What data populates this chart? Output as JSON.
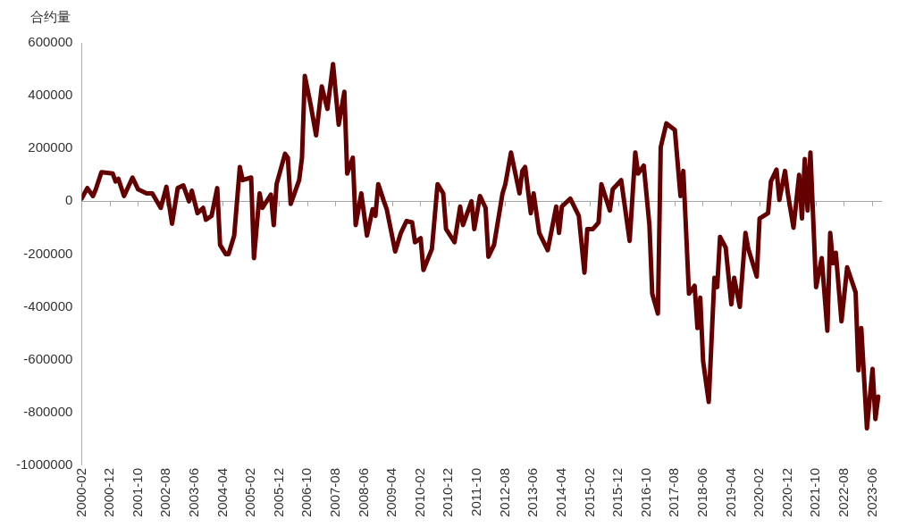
{
  "chart_data": {
    "type": "line",
    "ylabel": "合约量",
    "x": [
      "2000-02",
      "2000-04",
      "2000-06",
      "2000-07",
      "2000-09",
      "2001-01",
      "2001-02",
      "2001-03",
      "2001-05",
      "2001-08",
      "2001-10",
      "2002-01",
      "2002-03",
      "2002-06",
      "2002-08",
      "2002-10",
      "2002-12",
      "2003-02",
      "2003-04",
      "2003-05",
      "2003-07",
      "2003-09",
      "2003-10",
      "2003-12",
      "2004-02",
      "2004-03",
      "2004-05",
      "2004-06",
      "2004-08",
      "2004-10",
      "2004-11",
      "2005-02",
      "2005-03",
      "2005-05",
      "2005-06",
      "2005-09",
      "2005-10",
      "2005-11",
      "2006-02",
      "2006-03",
      "2006-04",
      "2006-07",
      "2006-08",
      "2006-09",
      "2006-11",
      "2007-01",
      "2007-03",
      "2007-05",
      "2007-07",
      "2007-09",
      "2007-11",
      "2007-12",
      "2008-02",
      "2008-03",
      "2008-05",
      "2008-07",
      "2008-09",
      "2008-10",
      "2008-11",
      "2009-01",
      "2009-02",
      "2009-05",
      "2009-07",
      "2009-09",
      "2009-11",
      "2009-12",
      "2010-02",
      "2010-03",
      "2010-06",
      "2010-08",
      "2010-10",
      "2010-11",
      "2011-02",
      "2011-04",
      "2011-05",
      "2011-08",
      "2011-09",
      "2011-11",
      "2012-01",
      "2012-02",
      "2012-04",
      "2012-07",
      "2012-08",
      "2012-10",
      "2013-01",
      "2013-02",
      "2013-03",
      "2013-05",
      "2013-06",
      "2013-08",
      "2013-11",
      "2014-02",
      "2014-03",
      "2014-04",
      "2014-07",
      "2014-10",
      "2014-12",
      "2015-01",
      "2015-03",
      "2015-05",
      "2015-06",
      "2015-09",
      "2015-10",
      "2016-01",
      "2016-04",
      "2016-06",
      "2016-07",
      "2016-09",
      "2016-11",
      "2016-12",
      "2017-02",
      "2017-03",
      "2017-05",
      "2017-08",
      "2017-10",
      "2017-11",
      "2018-01",
      "2018-03",
      "2018-04",
      "2018-05",
      "2018-06",
      "2018-08",
      "2018-10",
      "2018-11",
      "2018-12",
      "2019-02",
      "2019-04",
      "2019-05",
      "2019-07",
      "2019-09",
      "2019-10",
      "2020-01",
      "2020-02",
      "2020-05",
      "2020-06",
      "2020-08",
      "2020-09",
      "2020-11",
      "2020-12",
      "2021-02",
      "2021-04",
      "2021-05",
      "2021-06",
      "2021-07",
      "2021-08",
      "2021-10",
      "2021-12",
      "2022-02",
      "2022-03",
      "2022-04",
      "2022-05",
      "2022-07",
      "2022-09",
      "2022-12",
      "2023-01",
      "2023-02",
      "2023-04",
      "2023-06",
      "2023-07",
      "2023-08"
    ],
    "series": [
      {
        "color": "#650000",
        "values": [
          10000,
          50000,
          20000,
          45000,
          110000,
          105000,
          75000,
          85000,
          20000,
          90000,
          45000,
          30000,
          30000,
          -25000,
          55000,
          -85000,
          50000,
          60000,
          0,
          40000,
          -45000,
          -25000,
          -70000,
          -55000,
          50000,
          -165000,
          -200000,
          -200000,
          -130000,
          130000,
          80000,
          90000,
          -215000,
          30000,
          -25000,
          25000,
          -90000,
          65000,
          180000,
          165000,
          -10000,
          80000,
          165000,
          475000,
          370000,
          250000,
          435000,
          350000,
          520000,
          290000,
          415000,
          105000,
          165000,
          -90000,
          30000,
          -130000,
          -30000,
          -55000,
          65000,
          0,
          -30000,
          -190000,
          -120000,
          -75000,
          -80000,
          -155000,
          -140000,
          -260000,
          -180000,
          65000,
          30000,
          -105000,
          -155000,
          -20000,
          -90000,
          0,
          -105000,
          20000,
          -25000,
          -210000,
          -165000,
          30000,
          65000,
          185000,
          30000,
          115000,
          130000,
          -45000,
          30000,
          -120000,
          -185000,
          -20000,
          -120000,
          -20000,
          10000,
          -55000,
          -270000,
          -105000,
          -105000,
          -80000,
          65000,
          -35000,
          45000,
          80000,
          -150000,
          185000,
          105000,
          135000,
          -90000,
          -350000,
          -425000,
          205000,
          295000,
          270000,
          20000,
          115000,
          -350000,
          -320000,
          -480000,
          -365000,
          -605000,
          -760000,
          -290000,
          -325000,
          -135000,
          -175000,
          -390000,
          -290000,
          -400000,
          -120000,
          -180000,
          -285000,
          -65000,
          -45000,
          75000,
          120000,
          5000,
          115000,
          30000,
          -100000,
          100000,
          -65000,
          160000,
          -35000,
          185000,
          -325000,
          -215000,
          -490000,
          -120000,
          -235000,
          -195000,
          -455000,
          -250000,
          -345000,
          -640000,
          -480000,
          -860000,
          -635000,
          -825000,
          -740000
        ]
      }
    ],
    "xlim": [
      "2000-02",
      "2023-09"
    ],
    "xticks": [
      "2000-02",
      "2000-12",
      "2001-10",
      "2002-08",
      "2003-06",
      "2004-04",
      "2005-02",
      "2005-12",
      "2006-10",
      "2007-08",
      "2008-06",
      "2009-04",
      "2010-02",
      "2010-12",
      "2011-10",
      "2012-08",
      "2013-06",
      "2014-04",
      "2015-02",
      "2015-12",
      "2016-10",
      "2017-08",
      "2018-06",
      "2019-04",
      "2020-02",
      "2020-12",
      "2021-10",
      "2022-08",
      "2023-06"
    ],
    "ylim": [
      -1000000,
      600000
    ],
    "yticks": [
      -1000000,
      -800000,
      -600000,
      -400000,
      -200000,
      0,
      200000,
      400000,
      600000
    ],
    "ref_lines": [
      {
        "axis": "y",
        "value": 0,
        "color": "#a6a6a6"
      }
    ],
    "grid": false,
    "legend": false,
    "marker": "none",
    "line_style": "solid"
  }
}
